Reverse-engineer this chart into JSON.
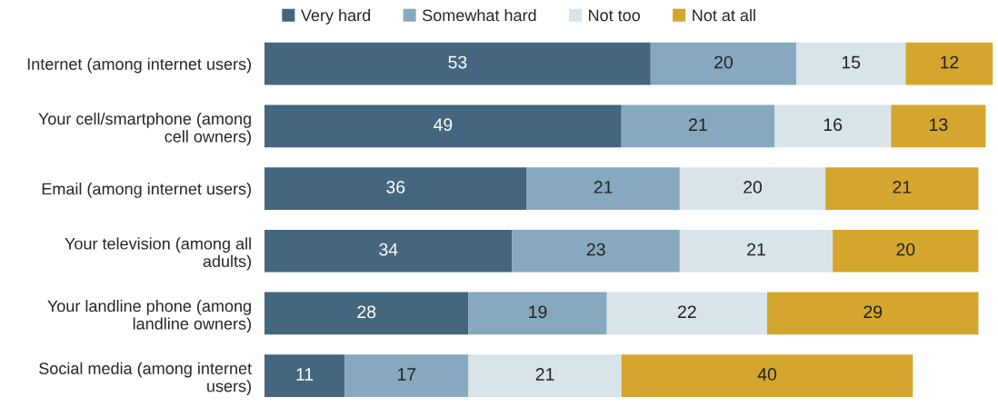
{
  "chart_data": {
    "type": "bar",
    "orientation": "horizontal",
    "stacked": true,
    "data_labels": true,
    "legend": "top",
    "grid": false,
    "categories": [
      "Internet (among internet users)",
      "Your cell/smartphone (among\ncell owners)",
      "Email (among internet users)",
      "Your television (among all\nadults)",
      "Your landline phone (among\nlandline owners)",
      "Social media (among internet\nusers)"
    ],
    "series": [
      {
        "name": "Very hard",
        "color": "#44667f",
        "values": [
          53,
          49,
          36,
          34,
          28,
          11
        ]
      },
      {
        "name": "Somewhat hard",
        "color": "#87a9c0",
        "values": [
          20,
          21,
          21,
          23,
          19,
          17
        ]
      },
      {
        "name": "Not too",
        "color": "#d9e3ea",
        "values": [
          15,
          16,
          20,
          21,
          22,
          21
        ]
      },
      {
        "name": "Not at all",
        "color": "#d5a62e",
        "values": [
          12,
          13,
          21,
          20,
          29,
          40
        ]
      }
    ]
  }
}
